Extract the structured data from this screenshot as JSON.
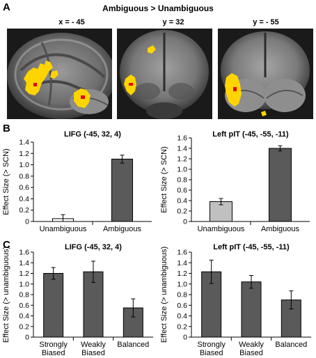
{
  "figure": {
    "panel_a_letter": "A",
    "panel_b_letter": "B",
    "panel_c_letter": "C",
    "panel_a_title": "Ambiguous > Unambiguous",
    "brain_slices": [
      {
        "label": "x = - 45"
      },
      {
        "label": "y = 32"
      },
      {
        "label": "y = - 55"
      }
    ],
    "colors": {
      "activation_core": "#e00000",
      "activation": "#ffd400",
      "bar_dark": "#5a5a5a",
      "bar_light": "#c0c0c0"
    }
  },
  "chart_data": [
    {
      "type": "bar",
      "title": "LIFG (-45, 32, 4)",
      "ylabel": "Effect Size (> SCN)",
      "categories": [
        "Unambiguous",
        "Ambiguous"
      ],
      "values": [
        0.05,
        1.1
      ],
      "errors": [
        0.07,
        0.07
      ],
      "bar_colors": [
        "#ffffff",
        "#5a5a5a"
      ],
      "ylim": [
        0,
        1.4
      ],
      "yticks": [
        "0",
        "0.2",
        "0.4",
        "0.6",
        "0.8",
        "1.0",
        "1.2",
        "1.4"
      ]
    },
    {
      "type": "bar",
      "title": "Left pIT (-45, -55, -11)",
      "ylabel": "Effect Size (> SCN)",
      "categories": [
        "Unambiguous",
        "Ambiguous"
      ],
      "values": [
        0.38,
        1.4
      ],
      "errors": [
        0.06,
        0.05
      ],
      "bar_colors": [
        "#c0c0c0",
        "#5a5a5a"
      ],
      "ylim": [
        0,
        1.6
      ],
      "yticks": [
        "0",
        "0.2",
        "0.4",
        "0.6",
        "0.8",
        "1.0",
        "1.2",
        "1.4",
        "1.6"
      ]
    },
    {
      "type": "bar",
      "title": "LIFG (-45, 32, 4)",
      "ylabel": "Effect Size (> unambiguous)",
      "categories": [
        [
          "Strongly",
          "Biased"
        ],
        [
          "Weakly",
          "Biased"
        ],
        [
          "Balanced"
        ]
      ],
      "values": [
        1.2,
        1.23,
        0.55
      ],
      "errors": [
        0.11,
        0.2,
        0.17
      ],
      "bar_colors": [
        "#5a5a5a",
        "#5a5a5a",
        "#5a5a5a"
      ],
      "ylim": [
        0,
        1.6
      ],
      "yticks": [
        "0",
        "0.2",
        "0.4",
        "0.6",
        "0.8",
        "1.0",
        "1.2",
        "1.4",
        "1.6"
      ]
    },
    {
      "type": "bar",
      "title": "Left pIT (-45, -55, -11)",
      "ylabel": "Effect Size (> unambiguous)",
      "categories": [
        [
          "Strongly",
          "Biased"
        ],
        [
          "Weakly",
          "Biased"
        ],
        [
          "Balanced"
        ]
      ],
      "values": [
        1.23,
        1.04,
        0.7
      ],
      "errors": [
        0.22,
        0.12,
        0.17
      ],
      "bar_colors": [
        "#5a5a5a",
        "#5a5a5a",
        "#5a5a5a"
      ],
      "ylim": [
        0,
        1.6
      ],
      "yticks": [
        "0",
        "0.2",
        "0.4",
        "0.6",
        "0.8",
        "1.0",
        "1.2",
        "1.4",
        "1.6"
      ]
    }
  ]
}
